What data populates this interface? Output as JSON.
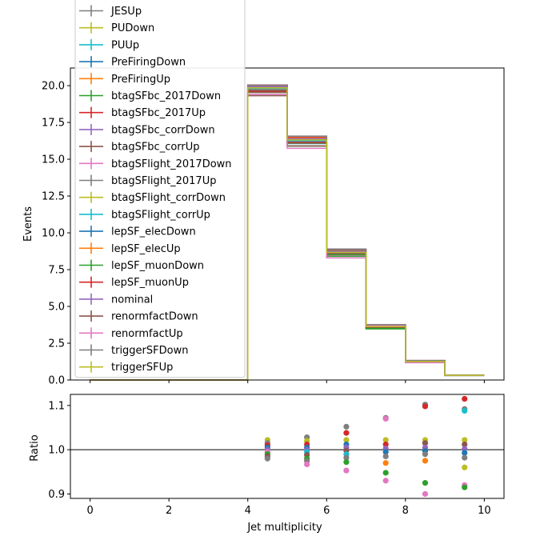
{
  "chart_data": [
    {
      "type": "line",
      "subtype": "step-histogram",
      "ylabel": "Events",
      "xlim": [
        -0.5,
        10.5
      ],
      "ylim": [
        0,
        21.2
      ],
      "yticks": [
        "0.0",
        "2.5",
        "5.0",
        "7.5",
        "10.0",
        "12.5",
        "15.0",
        "17.5",
        "20.0"
      ],
      "bin_edges": [
        0,
        1,
        2,
        3,
        4,
        5,
        6,
        7,
        8,
        9,
        10
      ],
      "reference_values": [
        0,
        0,
        0,
        0,
        19.7,
        16.2,
        8.6,
        3.6,
        1.25,
        0.32
      ],
      "legend_placement": "upper-left (overflowing above axes)",
      "series": [
        {
          "name": "JESUp",
          "color": "#7f7f7f"
        },
        {
          "name": "PUDown",
          "color": "#bcbd22"
        },
        {
          "name": "PUUp",
          "color": "#17becf"
        },
        {
          "name": "PreFiringDown",
          "color": "#1f77b4"
        },
        {
          "name": "PreFiringUp",
          "color": "#ff7f0e"
        },
        {
          "name": "btagSFbc_2017Down",
          "color": "#2ca02c"
        },
        {
          "name": "btagSFbc_2017Up",
          "color": "#d62728"
        },
        {
          "name": "btagSFbc_corrDown",
          "color": "#9467bd"
        },
        {
          "name": "btagSFbc_corrUp",
          "color": "#8c564b"
        },
        {
          "name": "btagSFlight_2017Down",
          "color": "#e377c2"
        },
        {
          "name": "btagSFlight_2017Up",
          "color": "#7f7f7f"
        },
        {
          "name": "btagSFlight_corrDown",
          "color": "#bcbd22"
        },
        {
          "name": "btagSFlight_corrUp",
          "color": "#17becf"
        },
        {
          "name": "lepSF_elecDown",
          "color": "#1f77b4"
        },
        {
          "name": "lepSF_elecUp",
          "color": "#ff7f0e"
        },
        {
          "name": "lepSF_muonDown",
          "color": "#2ca02c"
        },
        {
          "name": "lepSF_muonUp",
          "color": "#d62728"
        },
        {
          "name": "nominal",
          "color": "#9467bd"
        },
        {
          "name": "renormfactDown",
          "color": "#8c564b"
        },
        {
          "name": "renormfactUp",
          "color": "#e377c2"
        },
        {
          "name": "triggerSFDown",
          "color": "#7f7f7f"
        },
        {
          "name": "triggerSFUp",
          "color": "#bcbd22"
        }
      ]
    },
    {
      "type": "scatter",
      "xlabel": "Jet multiplicity",
      "ylabel": "Ratio",
      "xlim": [
        -0.5,
        10.5
      ],
      "ylim": [
        0.89,
        1.125
      ],
      "xticks": [
        "0",
        "2",
        "4",
        "6",
        "8",
        "10"
      ],
      "yticks": [
        "0.9",
        "1.0",
        "1.1"
      ],
      "reference_line": 1.0,
      "x": [
        4.5,
        5.5,
        6.5,
        7.5,
        8.5,
        9.5
      ],
      "points": [
        {
          "x": 4.5,
          "y": 1.022,
          "color": "#bcbd22"
        },
        {
          "x": 4.5,
          "y": 1.015,
          "color": "#7f7f7f"
        },
        {
          "x": 4.5,
          "y": 1.01,
          "color": "#d62728"
        },
        {
          "x": 4.5,
          "y": 1.005,
          "color": "#1f77b4"
        },
        {
          "x": 4.5,
          "y": 1.0,
          "color": "#9467bd"
        },
        {
          "x": 4.5,
          "y": 0.995,
          "color": "#e377c2"
        },
        {
          "x": 4.5,
          "y": 0.99,
          "color": "#2ca02c"
        },
        {
          "x": 4.5,
          "y": 0.985,
          "color": "#8c564b"
        },
        {
          "x": 4.5,
          "y": 0.98,
          "color": "#7f7f7f"
        },
        {
          "x": 5.5,
          "y": 1.028,
          "color": "#7f7f7f"
        },
        {
          "x": 5.5,
          "y": 1.02,
          "color": "#bcbd22"
        },
        {
          "x": 5.5,
          "y": 1.012,
          "color": "#d62728"
        },
        {
          "x": 5.5,
          "y": 1.005,
          "color": "#1f77b4"
        },
        {
          "x": 5.5,
          "y": 1.0,
          "color": "#9467bd"
        },
        {
          "x": 5.5,
          "y": 0.995,
          "color": "#17becf"
        },
        {
          "x": 5.5,
          "y": 0.988,
          "color": "#8c564b"
        },
        {
          "x": 5.5,
          "y": 0.98,
          "color": "#2ca02c"
        },
        {
          "x": 5.5,
          "y": 0.975,
          "color": "#7f7f7f"
        },
        {
          "x": 5.5,
          "y": 0.967,
          "color": "#e377c2"
        },
        {
          "x": 6.5,
          "y": 1.052,
          "color": "#7f7f7f"
        },
        {
          "x": 6.5,
          "y": 1.038,
          "color": "#d62728"
        },
        {
          "x": 6.5,
          "y": 1.022,
          "color": "#bcbd22"
        },
        {
          "x": 6.5,
          "y": 1.012,
          "color": "#1f77b4"
        },
        {
          "x": 6.5,
          "y": 1.005,
          "color": "#9467bd"
        },
        {
          "x": 6.5,
          "y": 0.998,
          "color": "#8c564b"
        },
        {
          "x": 6.5,
          "y": 0.99,
          "color": "#17becf"
        },
        {
          "x": 6.5,
          "y": 0.982,
          "color": "#7f7f7f"
        },
        {
          "x": 6.5,
          "y": 0.972,
          "color": "#2ca02c"
        },
        {
          "x": 6.5,
          "y": 0.953,
          "color": "#e377c2"
        },
        {
          "x": 7.5,
          "y": 1.072,
          "color": "#7f7f7f"
        },
        {
          "x": 7.5,
          "y": 1.07,
          "color": "#e377c2"
        },
        {
          "x": 7.5,
          "y": 1.022,
          "color": "#bcbd22"
        },
        {
          "x": 7.5,
          "y": 1.012,
          "color": "#d62728"
        },
        {
          "x": 7.5,
          "y": 1.003,
          "color": "#9467bd"
        },
        {
          "x": 7.5,
          "y": 0.995,
          "color": "#1f77b4"
        },
        {
          "x": 7.5,
          "y": 0.985,
          "color": "#7f7f7f"
        },
        {
          "x": 7.5,
          "y": 0.97,
          "color": "#ff7f0e"
        },
        {
          "x": 7.5,
          "y": 0.948,
          "color": "#2ca02c"
        },
        {
          "x": 7.5,
          "y": 0.93,
          "color": "#e377c2"
        },
        {
          "x": 8.5,
          "y": 1.102,
          "color": "#7f7f7f"
        },
        {
          "x": 8.5,
          "y": 1.098,
          "color": "#d62728"
        },
        {
          "x": 8.5,
          "y": 1.022,
          "color": "#bcbd22"
        },
        {
          "x": 8.5,
          "y": 1.015,
          "color": "#8c564b"
        },
        {
          "x": 8.5,
          "y": 1.005,
          "color": "#9467bd"
        },
        {
          "x": 8.5,
          "y": 0.997,
          "color": "#1f77b4"
        },
        {
          "x": 8.5,
          "y": 0.99,
          "color": "#7f7f7f"
        },
        {
          "x": 8.5,
          "y": 0.975,
          "color": "#ff7f0e"
        },
        {
          "x": 8.5,
          "y": 0.925,
          "color": "#2ca02c"
        },
        {
          "x": 8.5,
          "y": 0.9,
          "color": "#e377c2"
        },
        {
          "x": 9.5,
          "y": 1.115,
          "color": "#d62728"
        },
        {
          "x": 9.5,
          "y": 1.092,
          "color": "#7f7f7f"
        },
        {
          "x": 9.5,
          "y": 1.088,
          "color": "#17becf"
        },
        {
          "x": 9.5,
          "y": 1.022,
          "color": "#bcbd22"
        },
        {
          "x": 9.5,
          "y": 1.012,
          "color": "#8c564b"
        },
        {
          "x": 9.5,
          "y": 1.002,
          "color": "#9467bd"
        },
        {
          "x": 9.5,
          "y": 0.993,
          "color": "#1f77b4"
        },
        {
          "x": 9.5,
          "y": 0.982,
          "color": "#7f7f7f"
        },
        {
          "x": 9.5,
          "y": 0.96,
          "color": "#bcbd22"
        },
        {
          "x": 9.5,
          "y": 0.92,
          "color": "#e377c2"
        },
        {
          "x": 9.5,
          "y": 0.915,
          "color": "#2ca02c"
        }
      ]
    }
  ]
}
